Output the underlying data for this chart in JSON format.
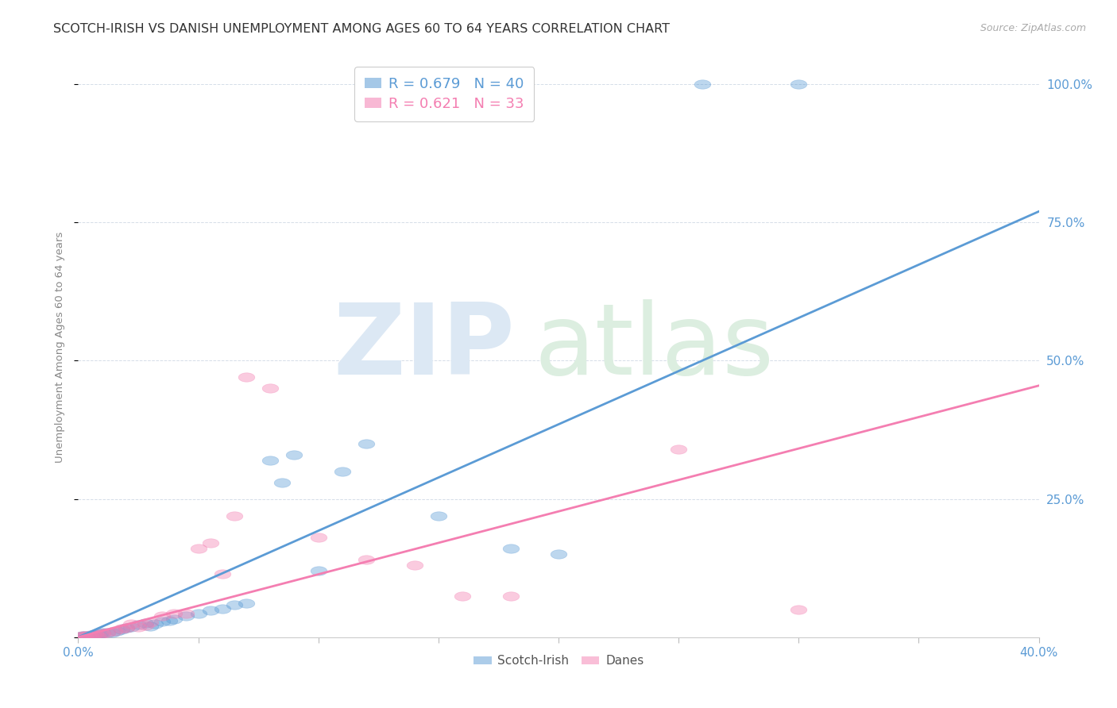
{
  "title": "SCOTCH-IRISH VS DANISH UNEMPLOYMENT AMONG AGES 60 TO 64 YEARS CORRELATION CHART",
  "source": "Source: ZipAtlas.com",
  "ylabel": "Unemployment Among Ages 60 to 64 years",
  "xlim": [
    0.0,
    0.4
  ],
  "ylim": [
    0.0,
    1.05
  ],
  "xticks": [
    0.0,
    0.05,
    0.1,
    0.15,
    0.2,
    0.25,
    0.3,
    0.35,
    0.4
  ],
  "xticklabels_outer": [
    "0.0%",
    "",
    "",
    "",
    "",
    "",
    "",
    "",
    "40.0%"
  ],
  "yticks": [
    0.0,
    0.25,
    0.5,
    0.75,
    1.0
  ],
  "yticklabels": [
    "",
    "25.0%",
    "50.0%",
    "75.0%",
    "100.0%"
  ],
  "scotch_irish_color": "#5B9BD5",
  "danes_color": "#F47EB1",
  "scotch_irish_R": 0.679,
  "scotch_irish_N": 40,
  "danes_R": 0.621,
  "danes_N": 33,
  "scotch_irish_points": [
    [
      0.001,
      0.001
    ],
    [
      0.002,
      0.002
    ],
    [
      0.003,
      0.003
    ],
    [
      0.004,
      0.001
    ],
    [
      0.005,
      0.004
    ],
    [
      0.006,
      0.003
    ],
    [
      0.007,
      0.004
    ],
    [
      0.008,
      0.004
    ],
    [
      0.009,
      0.007
    ],
    [
      0.01,
      0.009
    ],
    [
      0.012,
      0.008
    ],
    [
      0.014,
      0.009
    ],
    [
      0.016,
      0.011
    ],
    [
      0.018,
      0.014
    ],
    [
      0.02,
      0.017
    ],
    [
      0.022,
      0.019
    ],
    [
      0.025,
      0.023
    ],
    [
      0.028,
      0.026
    ],
    [
      0.03,
      0.02
    ],
    [
      0.032,
      0.024
    ],
    [
      0.035,
      0.028
    ],
    [
      0.038,
      0.03
    ],
    [
      0.04,
      0.033
    ],
    [
      0.045,
      0.038
    ],
    [
      0.05,
      0.043
    ],
    [
      0.055,
      0.048
    ],
    [
      0.06,
      0.052
    ],
    [
      0.065,
      0.058
    ],
    [
      0.07,
      0.062
    ],
    [
      0.08,
      0.32
    ],
    [
      0.085,
      0.28
    ],
    [
      0.09,
      0.33
    ],
    [
      0.1,
      0.12
    ],
    [
      0.11,
      0.3
    ],
    [
      0.12,
      0.35
    ],
    [
      0.15,
      0.22
    ],
    [
      0.18,
      0.16
    ],
    [
      0.2,
      0.15
    ],
    [
      0.26,
      1.0
    ],
    [
      0.3,
      1.0
    ]
  ],
  "danes_points": [
    [
      0.001,
      0.001
    ],
    [
      0.002,
      0.002
    ],
    [
      0.003,
      0.003
    ],
    [
      0.004,
      0.002
    ],
    [
      0.005,
      0.003
    ],
    [
      0.006,
      0.004
    ],
    [
      0.007,
      0.005
    ],
    [
      0.008,
      0.003
    ],
    [
      0.01,
      0.007
    ],
    [
      0.012,
      0.009
    ],
    [
      0.015,
      0.011
    ],
    [
      0.018,
      0.015
    ],
    [
      0.02,
      0.017
    ],
    [
      0.022,
      0.024
    ],
    [
      0.025,
      0.019
    ],
    [
      0.028,
      0.021
    ],
    [
      0.03,
      0.027
    ],
    [
      0.035,
      0.038
    ],
    [
      0.04,
      0.043
    ],
    [
      0.045,
      0.043
    ],
    [
      0.05,
      0.16
    ],
    [
      0.055,
      0.17
    ],
    [
      0.06,
      0.115
    ],
    [
      0.065,
      0.22
    ],
    [
      0.07,
      0.47
    ],
    [
      0.08,
      0.45
    ],
    [
      0.1,
      0.18
    ],
    [
      0.12,
      0.14
    ],
    [
      0.14,
      0.13
    ],
    [
      0.16,
      0.075
    ],
    [
      0.18,
      0.075
    ],
    [
      0.25,
      0.34
    ],
    [
      0.3,
      0.05
    ]
  ],
  "scotch_irish_trend_x": [
    0.0,
    0.4
  ],
  "scotch_irish_trend_y": [
    0.0,
    0.77
  ],
  "danes_trend_x": [
    0.0,
    0.4
  ],
  "danes_trend_y": [
    0.0,
    0.455
  ],
  "background_color": "#ffffff",
  "grid_color": "#d5dde8",
  "axis_label_color": "#5B9BD5",
  "title_color": "#333333",
  "ylabel_color": "#888888",
  "source_color": "#aaaaaa",
  "title_fontsize": 11.5,
  "axis_label_fontsize": 9.5,
  "tick_fontsize": 11,
  "legend_fontsize": 13
}
